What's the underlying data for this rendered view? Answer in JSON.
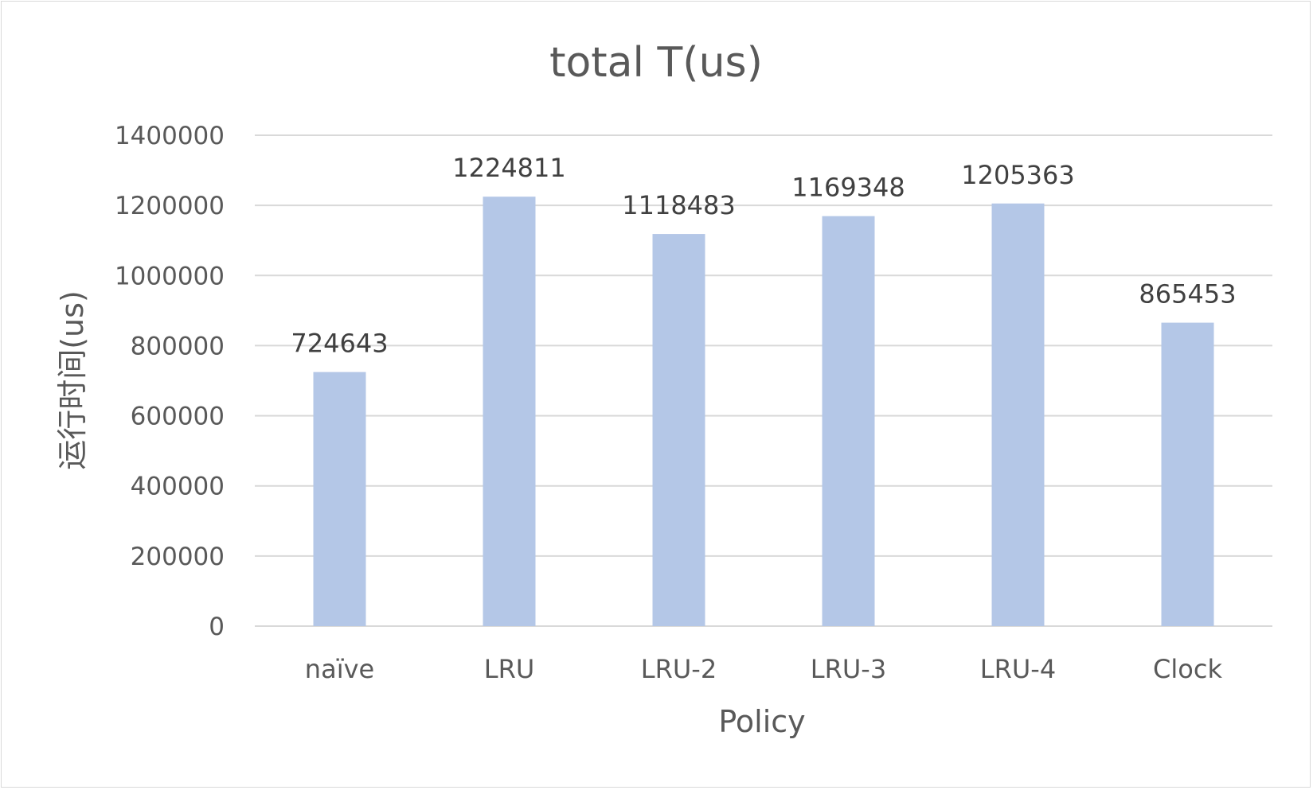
{
  "chart_data": {
    "type": "bar",
    "title": "total T(us)",
    "xlabel": "Policy",
    "ylabel": "运行时间(us)",
    "categories": [
      "naïve",
      "LRU",
      "LRU-2",
      "LRU-3",
      "LRU-4",
      "Clock"
    ],
    "values": [
      724643,
      1224811,
      1118483,
      1169348,
      1205363,
      865453
    ],
    "ylim": [
      0,
      1400000
    ],
    "yticks": [
      "0",
      "200000",
      "400000",
      "600000",
      "800000",
      "1000000",
      "1200000",
      "1400000"
    ],
    "grid": true,
    "legend": "none",
    "colors": {
      "bar": "#b4c7e7",
      "grid": "#d9d9d9",
      "text": "#595959",
      "data_label": "#404040"
    }
  }
}
